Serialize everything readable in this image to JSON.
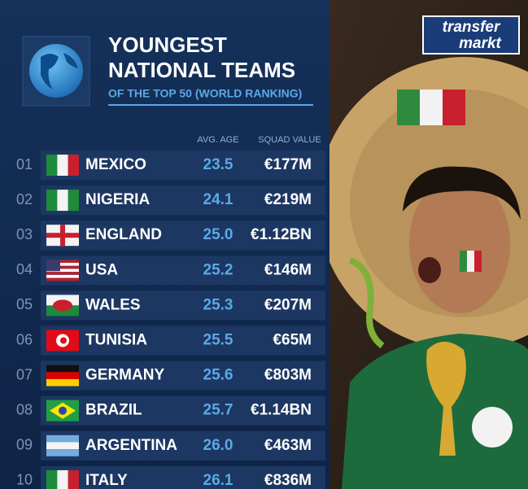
{
  "header": {
    "title_line1": "YOUNGEST",
    "title_line2": "NATIONAL TEAMS",
    "subtitle": "OF THE TOP 50 (WORLD RANKING)"
  },
  "logo": {
    "line1": "transfer",
    "line2": "markt"
  },
  "table": {
    "columns": [
      "AVG. AGE",
      "SQUAD VALUE"
    ],
    "rows": [
      [
        "01",
        "MEXICO",
        "23.5",
        "€177M"
      ],
      [
        "02",
        "NIGERIA",
        "24.1",
        "€219M"
      ],
      [
        "03",
        "ENGLAND",
        "25.0",
        "€1.12BN"
      ],
      [
        "04",
        "USA",
        "25.2",
        "€146M"
      ],
      [
        "05",
        "WALES",
        "25.3",
        "€207M"
      ],
      [
        "06",
        "TUNISIA",
        "25.5",
        "€65M"
      ],
      [
        "07",
        "GERMANY",
        "25.6",
        "€803M"
      ],
      [
        "08",
        "BRAZIL",
        "25.7",
        "€1.14BN"
      ],
      [
        "09",
        "ARGENTINA",
        "26.0",
        "€463M"
      ],
      [
        "10",
        "ITALY",
        "26.1",
        "€836M"
      ]
    ]
  }
}
